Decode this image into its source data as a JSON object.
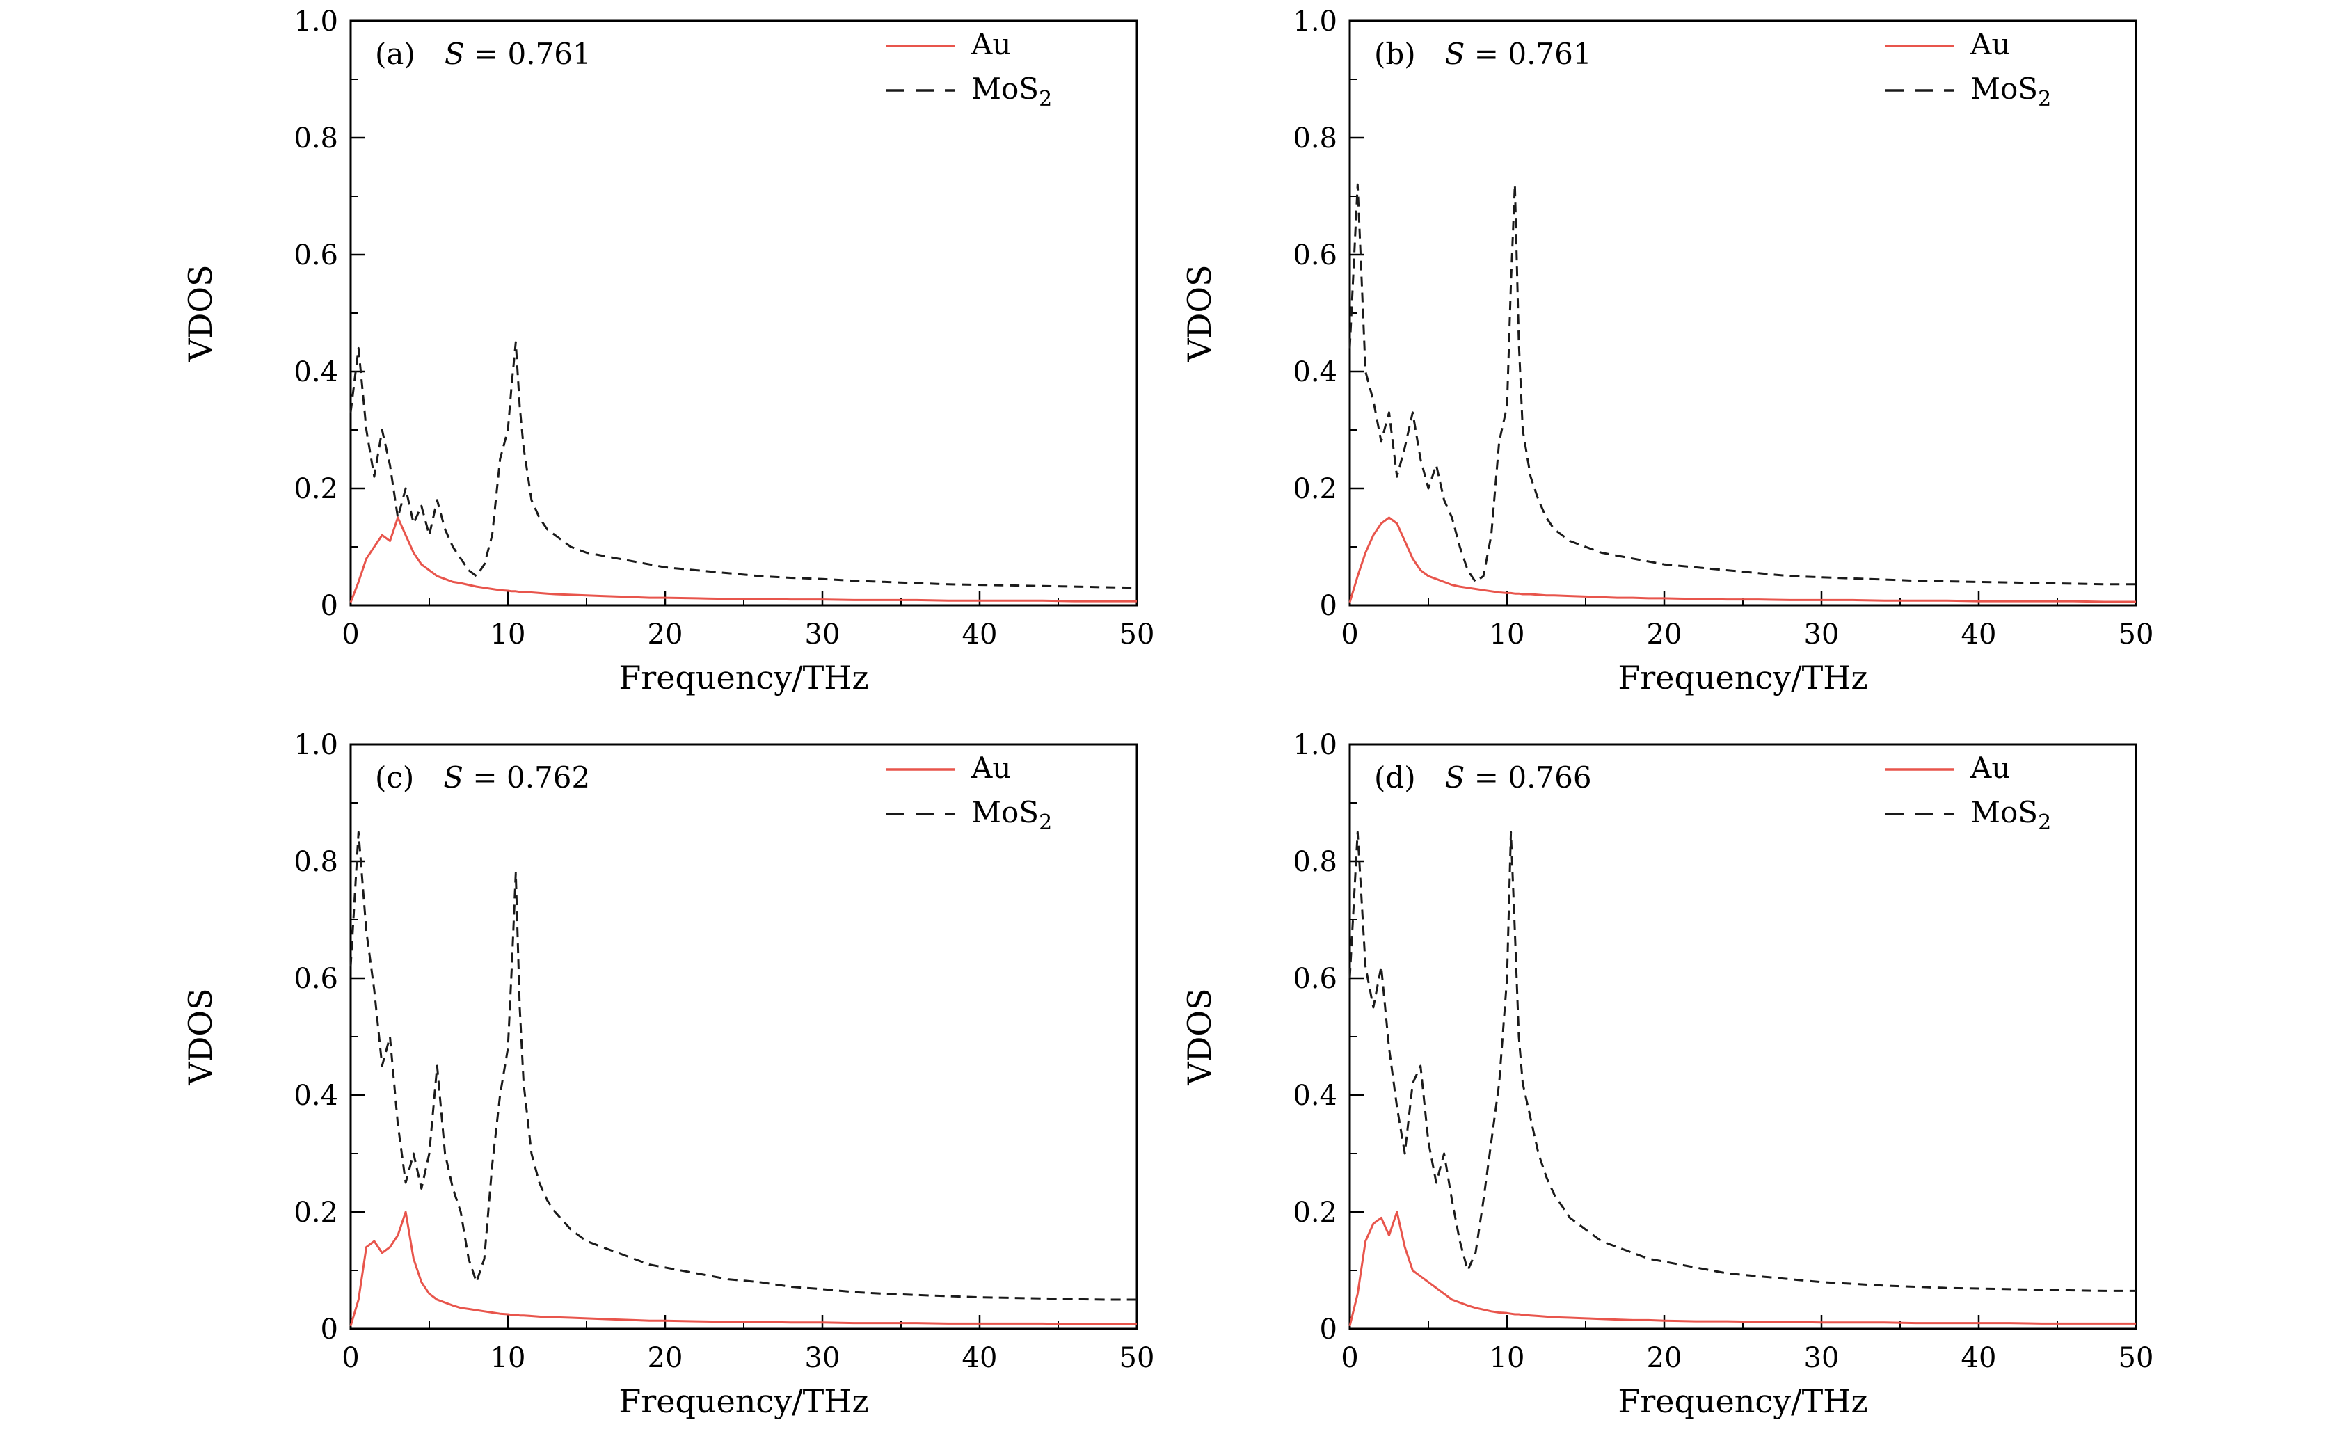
{
  "figure": {
    "background": "#ffffff",
    "axis_color": "#000000",
    "au_color": "#e8554c",
    "mos2_color": "#1a1a1a"
  },
  "chart_data": [
    {
      "type": "line",
      "panel": "(a)",
      "annotation_var": "S",
      "annotation_eq": "= 0.761",
      "xlabel": "Frequency/THz",
      "ylabel": "VDOS",
      "xlim": [
        0,
        50
      ],
      "ylim": [
        0,
        1.0
      ],
      "xticks": [
        0,
        10,
        20,
        30,
        40,
        50
      ],
      "xticklabels": [
        "0",
        "10",
        "20",
        "30",
        "40",
        "50"
      ],
      "yticks": [
        0,
        0.2,
        0.4,
        0.6,
        0.8,
        1.0
      ],
      "yticklabels": [
        "0",
        "0.2",
        "0.4",
        "0.6",
        "0.8",
        "1.0"
      ],
      "legend_position": "top-right",
      "grid": false,
      "x": [
        0,
        0.5,
        1,
        1.5,
        2,
        2.5,
        3,
        3.5,
        4,
        4.5,
        5,
        5.5,
        6,
        6.5,
        7,
        7.5,
        8,
        8.5,
        9,
        9.5,
        10,
        10.25,
        10.5,
        10.75,
        11,
        11.5,
        12,
        12.5,
        13,
        14,
        15,
        16,
        17,
        18,
        19,
        20,
        22,
        24,
        26,
        28,
        30,
        32,
        34,
        36,
        38,
        40,
        42,
        44,
        46,
        48,
        50
      ],
      "series": [
        {
          "label": "Au",
          "label_sub": "",
          "color": "#e8554c",
          "line": "solid",
          "values": [
            0.005,
            0.04,
            0.08,
            0.1,
            0.12,
            0.11,
            0.15,
            0.12,
            0.09,
            0.07,
            0.06,
            0.05,
            0.045,
            0.04,
            0.038,
            0.035,
            0.032,
            0.03,
            0.028,
            0.026,
            0.025,
            0.024,
            0.024,
            0.023,
            0.023,
            0.022,
            0.021,
            0.02,
            0.019,
            0.018,
            0.017,
            0.016,
            0.015,
            0.014,
            0.013,
            0.013,
            0.012,
            0.011,
            0.011,
            0.01,
            0.01,
            0.009,
            0.009,
            0.009,
            0.008,
            0.008,
            0.008,
            0.008,
            0.007,
            0.007,
            0.007
          ]
        },
        {
          "label": "MoS",
          "label_sub": "2",
          "color": "#1a1a1a",
          "line": "dashed",
          "values": [
            0.33,
            0.44,
            0.3,
            0.22,
            0.3,
            0.24,
            0.15,
            0.2,
            0.14,
            0.17,
            0.12,
            0.18,
            0.13,
            0.1,
            0.08,
            0.06,
            0.05,
            0.07,
            0.12,
            0.25,
            0.3,
            0.38,
            0.45,
            0.34,
            0.27,
            0.18,
            0.15,
            0.13,
            0.12,
            0.1,
            0.09,
            0.085,
            0.08,
            0.075,
            0.07,
            0.065,
            0.06,
            0.055,
            0.05,
            0.047,
            0.045,
            0.042,
            0.04,
            0.038,
            0.036,
            0.035,
            0.034,
            0.033,
            0.032,
            0.031,
            0.03
          ]
        }
      ]
    },
    {
      "type": "line",
      "panel": "(b)",
      "annotation_var": "S",
      "annotation_eq": "= 0.761",
      "xlabel": "Frequency/THz",
      "ylabel": "VDOS",
      "xlim": [
        0,
        50
      ],
      "ylim": [
        0,
        1.0
      ],
      "xticks": [
        0,
        10,
        20,
        30,
        40,
        50
      ],
      "xticklabels": [
        "0",
        "10",
        "20",
        "30",
        "40",
        "50"
      ],
      "yticks": [
        0,
        0.2,
        0.4,
        0.6,
        0.8,
        1.0
      ],
      "yticklabels": [
        "0",
        "0.2",
        "0.4",
        "0.6",
        "0.8",
        "1.0"
      ],
      "legend_position": "top-right",
      "grid": false,
      "x": [
        0,
        0.5,
        1,
        1.5,
        2,
        2.5,
        3,
        3.5,
        4,
        4.5,
        5,
        5.5,
        6,
        6.5,
        7,
        7.5,
        8,
        8.5,
        9,
        9.5,
        10,
        10.25,
        10.5,
        10.75,
        11,
        11.5,
        12,
        12.5,
        13,
        14,
        15,
        16,
        17,
        18,
        19,
        20,
        22,
        24,
        26,
        28,
        30,
        32,
        34,
        36,
        38,
        40,
        42,
        44,
        46,
        48,
        50
      ],
      "series": [
        {
          "label": "Au",
          "label_sub": "",
          "color": "#e8554c",
          "line": "solid",
          "values": [
            0.005,
            0.05,
            0.09,
            0.12,
            0.14,
            0.15,
            0.14,
            0.11,
            0.08,
            0.06,
            0.05,
            0.045,
            0.04,
            0.035,
            0.032,
            0.03,
            0.028,
            0.026,
            0.024,
            0.022,
            0.021,
            0.021,
            0.02,
            0.02,
            0.019,
            0.019,
            0.018,
            0.017,
            0.017,
            0.016,
            0.015,
            0.014,
            0.013,
            0.013,
            0.012,
            0.012,
            0.011,
            0.01,
            0.01,
            0.009,
            0.009,
            0.009,
            0.008,
            0.008,
            0.008,
            0.007,
            0.007,
            0.007,
            0.007,
            0.006,
            0.006
          ]
        },
        {
          "label": "MoS",
          "label_sub": "2",
          "color": "#1a1a1a",
          "line": "dashed",
          "values": [
            0.44,
            0.72,
            0.4,
            0.35,
            0.28,
            0.33,
            0.22,
            0.27,
            0.33,
            0.25,
            0.2,
            0.24,
            0.18,
            0.15,
            0.1,
            0.06,
            0.04,
            0.05,
            0.12,
            0.28,
            0.34,
            0.55,
            0.72,
            0.45,
            0.3,
            0.22,
            0.18,
            0.15,
            0.13,
            0.11,
            0.1,
            0.09,
            0.085,
            0.08,
            0.075,
            0.07,
            0.065,
            0.06,
            0.055,
            0.05,
            0.048,
            0.046,
            0.044,
            0.042,
            0.041,
            0.04,
            0.039,
            0.038,
            0.037,
            0.036,
            0.036
          ]
        }
      ]
    },
    {
      "type": "line",
      "panel": "(c)",
      "annotation_var": "S",
      "annotation_eq": "= 0.762",
      "xlabel": "Frequency/THz",
      "ylabel": "VDOS",
      "xlim": [
        0,
        50
      ],
      "ylim": [
        0,
        1.0
      ],
      "xticks": [
        0,
        10,
        20,
        30,
        40,
        50
      ],
      "xticklabels": [
        "0",
        "10",
        "20",
        "30",
        "40",
        "50"
      ],
      "yticks": [
        0,
        0.2,
        0.4,
        0.6,
        0.8,
        1.0
      ],
      "yticklabels": [
        "0",
        "0.2",
        "0.4",
        "0.6",
        "0.8",
        "1.0"
      ],
      "legend_position": "top-right",
      "grid": false,
      "x": [
        0,
        0.5,
        1,
        1.5,
        2,
        2.5,
        3,
        3.5,
        4,
        4.5,
        5,
        5.5,
        6,
        6.5,
        7,
        7.5,
        8,
        8.5,
        9,
        9.5,
        10,
        10.25,
        10.5,
        10.75,
        11,
        11.5,
        12,
        12.5,
        13,
        14,
        15,
        16,
        17,
        18,
        19,
        20,
        22,
        24,
        26,
        28,
        30,
        32,
        34,
        36,
        38,
        40,
        42,
        44,
        46,
        48,
        50
      ],
      "series": [
        {
          "label": "Au",
          "label_sub": "",
          "color": "#e8554c",
          "line": "solid",
          "values": [
            0.005,
            0.05,
            0.14,
            0.15,
            0.13,
            0.14,
            0.16,
            0.2,
            0.12,
            0.08,
            0.06,
            0.05,
            0.045,
            0.04,
            0.036,
            0.034,
            0.032,
            0.03,
            0.028,
            0.026,
            0.025,
            0.024,
            0.024,
            0.023,
            0.023,
            0.022,
            0.021,
            0.02,
            0.02,
            0.019,
            0.018,
            0.017,
            0.016,
            0.015,
            0.014,
            0.014,
            0.013,
            0.012,
            0.012,
            0.011,
            0.011,
            0.01,
            0.01,
            0.01,
            0.009,
            0.009,
            0.009,
            0.009,
            0.008,
            0.008,
            0.008
          ]
        },
        {
          "label": "MoS",
          "label_sub": "2",
          "color": "#1a1a1a",
          "line": "dashed",
          "values": [
            0.62,
            0.85,
            0.68,
            0.58,
            0.45,
            0.5,
            0.35,
            0.25,
            0.3,
            0.24,
            0.3,
            0.45,
            0.3,
            0.24,
            0.2,
            0.12,
            0.08,
            0.12,
            0.28,
            0.4,
            0.48,
            0.62,
            0.78,
            0.55,
            0.42,
            0.3,
            0.25,
            0.22,
            0.2,
            0.17,
            0.15,
            0.14,
            0.13,
            0.12,
            0.11,
            0.105,
            0.095,
            0.085,
            0.08,
            0.072,
            0.068,
            0.063,
            0.06,
            0.058,
            0.056,
            0.054,
            0.053,
            0.052,
            0.051,
            0.05,
            0.05
          ]
        }
      ]
    },
    {
      "type": "line",
      "panel": "(d)",
      "annotation_var": "S",
      "annotation_eq": "= 0.766",
      "xlabel": "Frequency/THz",
      "ylabel": "VDOS",
      "xlim": [
        0,
        50
      ],
      "ylim": [
        0,
        1.0
      ],
      "xticks": [
        0,
        10,
        20,
        30,
        40,
        50
      ],
      "xticklabels": [
        "0",
        "10",
        "20",
        "30",
        "40",
        "50"
      ],
      "yticks": [
        0,
        0.2,
        0.4,
        0.6,
        0.8,
        1.0
      ],
      "yticklabels": [
        "0",
        "0.2",
        "0.4",
        "0.6",
        "0.8",
        "1.0"
      ],
      "legend_position": "top-right",
      "grid": false,
      "x": [
        0,
        0.5,
        1,
        1.5,
        2,
        2.5,
        3,
        3.5,
        4,
        4.5,
        5,
        5.5,
        6,
        6.5,
        7,
        7.5,
        8,
        8.5,
        9,
        9.5,
        10,
        10.25,
        10.5,
        10.75,
        11,
        11.5,
        12,
        12.5,
        13,
        14,
        15,
        16,
        17,
        18,
        19,
        20,
        22,
        24,
        26,
        28,
        30,
        32,
        34,
        36,
        38,
        40,
        42,
        44,
        46,
        48,
        50
      ],
      "series": [
        {
          "label": "Au",
          "label_sub": "",
          "color": "#e8554c",
          "line": "solid",
          "values": [
            0.005,
            0.06,
            0.15,
            0.18,
            0.19,
            0.16,
            0.2,
            0.14,
            0.1,
            0.09,
            0.08,
            0.07,
            0.06,
            0.05,
            0.045,
            0.04,
            0.036,
            0.033,
            0.03,
            0.028,
            0.027,
            0.026,
            0.025,
            0.025,
            0.024,
            0.023,
            0.022,
            0.021,
            0.02,
            0.019,
            0.018,
            0.017,
            0.016,
            0.015,
            0.015,
            0.014,
            0.013,
            0.013,
            0.012,
            0.012,
            0.011,
            0.011,
            0.011,
            0.01,
            0.01,
            0.01,
            0.01,
            0.009,
            0.009,
            0.009,
            0.009
          ]
        },
        {
          "label": "MoS",
          "label_sub": "2",
          "color": "#1a1a1a",
          "line": "dashed",
          "values": [
            0.6,
            0.85,
            0.62,
            0.55,
            0.62,
            0.48,
            0.38,
            0.3,
            0.42,
            0.45,
            0.32,
            0.25,
            0.3,
            0.22,
            0.15,
            0.1,
            0.13,
            0.22,
            0.32,
            0.42,
            0.6,
            0.85,
            0.68,
            0.5,
            0.42,
            0.36,
            0.3,
            0.26,
            0.23,
            0.19,
            0.17,
            0.15,
            0.14,
            0.13,
            0.12,
            0.115,
            0.105,
            0.095,
            0.09,
            0.085,
            0.08,
            0.077,
            0.074,
            0.072,
            0.07,
            0.069,
            0.068,
            0.067,
            0.066,
            0.065,
            0.065
          ]
        }
      ]
    }
  ]
}
